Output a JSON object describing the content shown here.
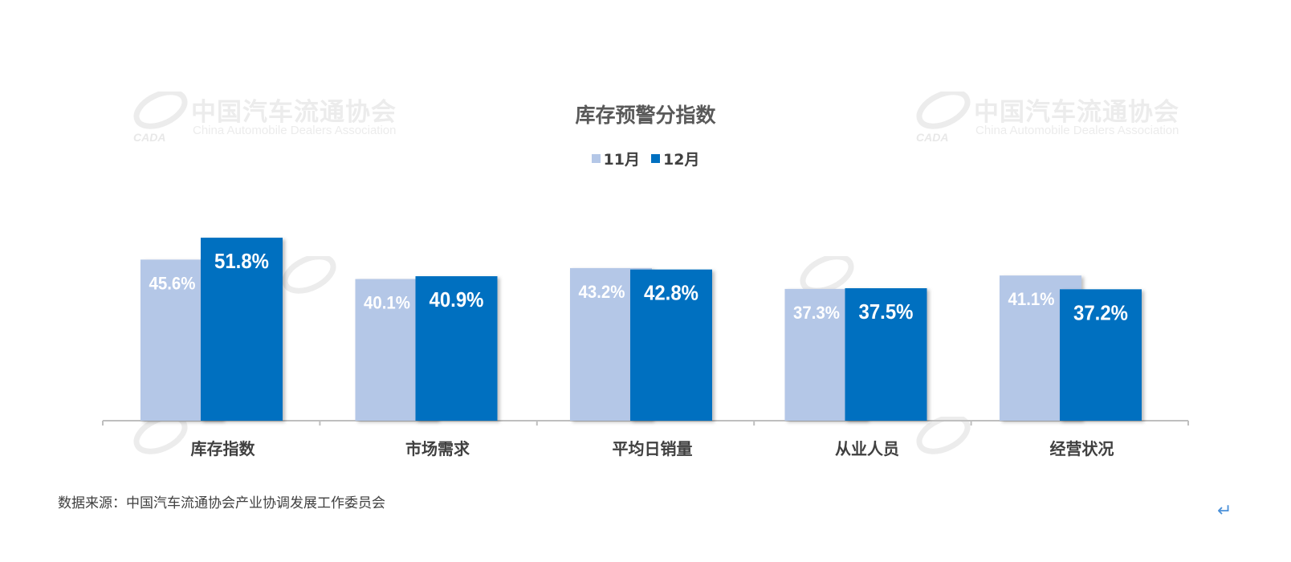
{
  "watermark": {
    "cn": "中国汽车流通协会",
    "en": "China Automobile Dealers Association",
    "logo": "CADA"
  },
  "chart_data": {
    "type": "bar",
    "title": "库存预警分指数",
    "categories": [
      "库存指数",
      "市场需求",
      "平均日销量",
      "从业人员",
      "经营状况"
    ],
    "series": [
      {
        "name": "11月",
        "values": [
          45.6,
          40.1,
          43.2,
          37.3,
          41.1
        ],
        "labels": [
          "45.6%",
          "40.1%",
          "43.2%",
          "37.3%",
          "41.1%"
        ],
        "color": "#b4c7e7"
      },
      {
        "name": "12月",
        "values": [
          51.8,
          40.9,
          42.8,
          37.5,
          37.2
        ],
        "labels": [
          "51.8%",
          "40.9%",
          "42.8%",
          "37.5%",
          "37.2%"
        ],
        "color": "#0070c0"
      }
    ],
    "ylim": [
      0,
      60
    ],
    "grid": false,
    "legend": "top"
  },
  "footer": {
    "source": "数据来源：中国汽车流通协会产业协调发展工作委员会",
    "return_icon": "return-arrow-icon"
  }
}
